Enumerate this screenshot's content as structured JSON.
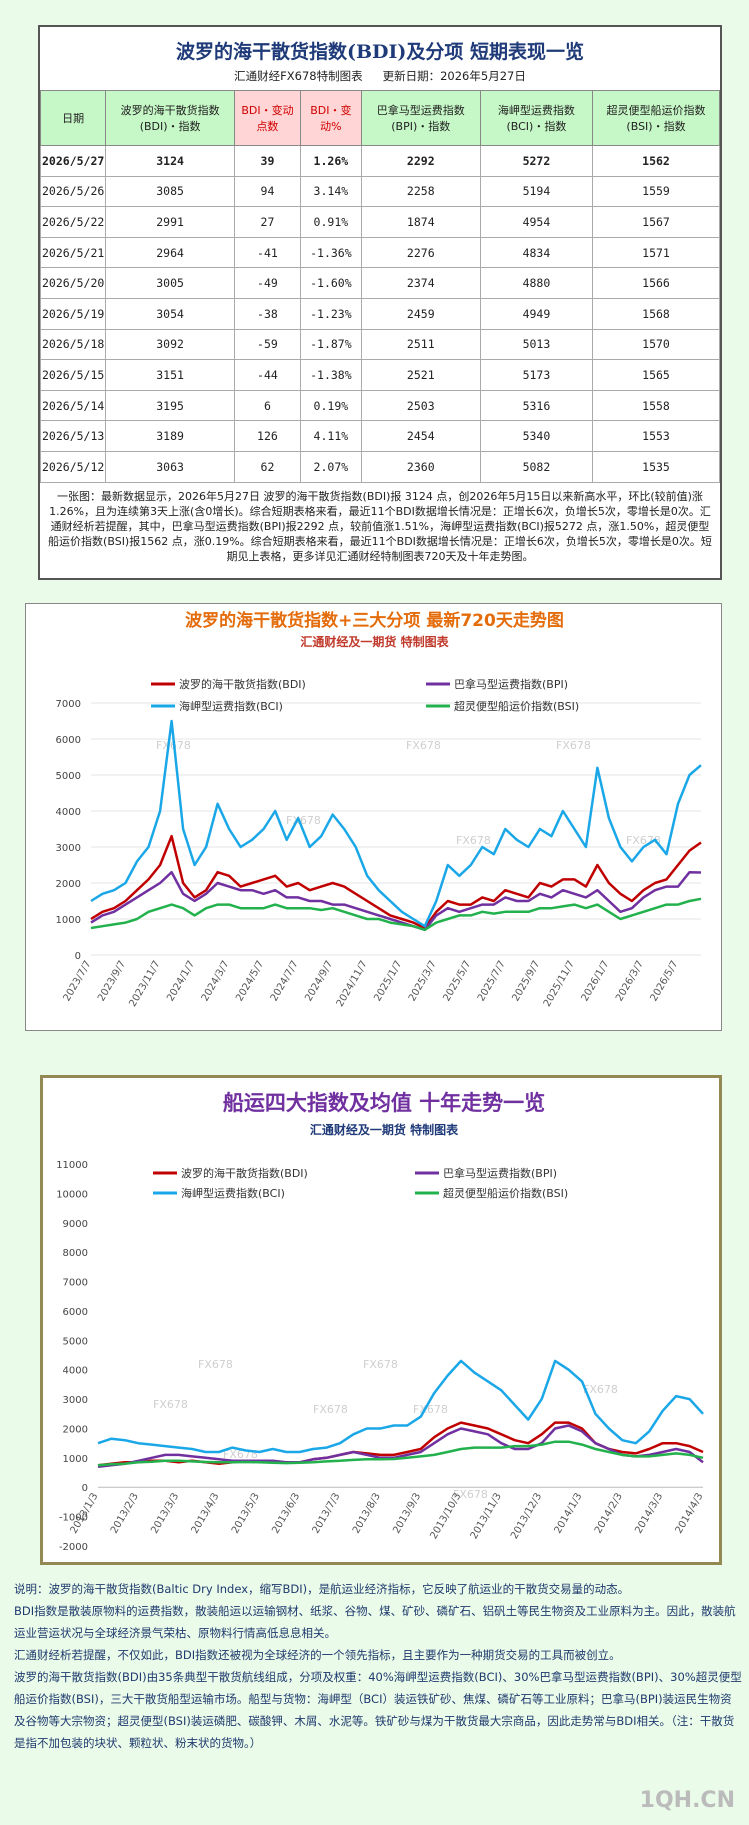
{
  "header": {
    "title": "波罗的海干散货指数(BDI)及分项  短期表现一览",
    "maker": "汇通财经FX678特制图表",
    "updated": "更新日期：2026年5月27日"
  },
  "table": {
    "columns": [
      "日期",
      "波罗的海干散货指数(BDI)・指数",
      "BDI・变动点数",
      "BDI・变动%",
      "巴拿马型运费指数(BPI)・指数",
      "海岬型运费指数(BCI)・指数",
      "超灵便型船运价指数(BSI)・指数"
    ],
    "rows": [
      [
        "2026/5/27",
        "3124",
        "39",
        "1.26%",
        "2292",
        "5272",
        "1562"
      ],
      [
        "2026/5/26",
        "3085",
        "94",
        "3.14%",
        "2258",
        "5194",
        "1559"
      ],
      [
        "2026/5/22",
        "2991",
        "27",
        "0.91%",
        "1874",
        "4954",
        "1567"
      ],
      [
        "2026/5/21",
        "2964",
        "-41",
        "-1.36%",
        "2276",
        "4834",
        "1571"
      ],
      [
        "2026/5/20",
        "3005",
        "-49",
        "-1.60%",
        "2374",
        "4880",
        "1566"
      ],
      [
        "2026/5/19",
        "3054",
        "-38",
        "-1.23%",
        "2459",
        "4949",
        "1568"
      ],
      [
        "2026/5/18",
        "3092",
        "-59",
        "-1.87%",
        "2511",
        "5013",
        "1570"
      ],
      [
        "2026/5/15",
        "3151",
        "-44",
        "-1.38%",
        "2521",
        "5173",
        "1565"
      ],
      [
        "2026/5/14",
        "3195",
        "6",
        "0.19%",
        "2503",
        "5316",
        "1558"
      ],
      [
        "2026/5/13",
        "3189",
        "126",
        "4.11%",
        "2454",
        "5340",
        "1553"
      ],
      [
        "2026/5/12",
        "3063",
        "62",
        "2.07%",
        "2360",
        "5082",
        "1535"
      ]
    ]
  },
  "summary": "一张图：最新数据显示，2026年5月27日 波罗的海干散货指数(BDI)报 3124 点，创2026年5月15日以来新高水平，环比(较前值)涨1.26%，且为连续第3天上涨(含0增长)。综合短期表格来看，最近11个BDI数据增长情况是：正增长6次，负增长5次，零增长是0次。汇通财经析若提醒，其中，巴拿马型运费指数(BPI)报2292 点，较前值涨1.51%，海岬型运费指数(BCI)报5272 点，涨1.50%，超灵便型船运价指数(BSI)报1562 点，涨0.19%。综合短期表格来看，最近11个BDI数据增长情况是：正增长6次，负增长5次，零增长是0次。短期见上表格，更多详见汇通财经特制图表720天及十年走势图。",
  "chart_data": [
    {
      "type": "line",
      "title": "波罗的海干散货指数+三大分项  最新720天走势图",
      "subtitle": "汇通财经及一期货 特制图表",
      "watermark": "FX678",
      "categories": [
        "2023/7/7",
        null,
        null,
        "2023/9/7",
        null,
        null,
        "2023/11/7",
        null,
        null,
        "2024/1/7",
        null,
        null,
        "2024/3/7",
        null,
        null,
        "2024/5/7",
        null,
        null,
        "2024/7/7",
        null,
        null,
        "2024/9/7",
        null,
        null,
        "2024/11/7",
        null,
        null,
        "2025/1/7",
        null,
        null,
        "2025/3/7",
        null,
        null,
        "2025/5/7",
        null,
        null,
        "2025/7/7",
        null,
        null,
        "2025/9/7",
        null,
        null,
        "2025/11/7",
        null,
        null,
        "2026/1/7",
        null,
        null,
        "2026/3/7",
        null,
        null,
        "2026/5/7",
        null,
        null
      ],
      "series": [
        {
          "name": "波罗的海干散货指数(BDI)",
          "color": "#c00000",
          "values": [
            1000,
            1200,
            1300,
            1500,
            1800,
            2100,
            2500,
            3300,
            2000,
            1600,
            1800,
            2300,
            2200,
            1900,
            2000,
            2100,
            2200,
            1900,
            2000,
            1800,
            1900,
            2000,
            1900,
            1700,
            1500,
            1300,
            1100,
            1000,
            900,
            750,
            1200,
            1500,
            1400,
            1400,
            1600,
            1500,
            1800,
            1700,
            1600,
            2000,
            1900,
            2100,
            2100,
            1900,
            2500,
            2000,
            1700,
            1500,
            1800,
            2000,
            2100,
            2500,
            2900,
            3124
          ]
        },
        {
          "name": "巴拿马型运费指数(BPI)",
          "color": "#7030a0",
          "values": [
            900,
            1100,
            1200,
            1400,
            1600,
            1800,
            2000,
            2300,
            1700,
            1500,
            1700,
            2000,
            1900,
            1800,
            1800,
            1700,
            1800,
            1600,
            1600,
            1500,
            1500,
            1400,
            1400,
            1300,
            1200,
            1100,
            1000,
            900,
            800,
            700,
            1100,
            1300,
            1200,
            1300,
            1400,
            1400,
            1600,
            1500,
            1500,
            1700,
            1600,
            1800,
            1700,
            1600,
            1800,
            1500,
            1200,
            1300,
            1600,
            1800,
            1900,
            1900,
            2300,
            2292
          ]
        },
        {
          "name": "海岬型运费指数(BCI)",
          "color": "#1aa7e8",
          "values": [
            1500,
            1700,
            1800,
            2000,
            2600,
            3000,
            4000,
            6500,
            3500,
            2500,
            3000,
            4200,
            3500,
            3000,
            3200,
            3500,
            4000,
            3200,
            3800,
            3000,
            3300,
            3900,
            3500,
            3000,
            2200,
            1800,
            1500,
            1200,
            1000,
            800,
            1500,
            2500,
            2200,
            2500,
            3000,
            2800,
            3500,
            3200,
            3000,
            3500,
            3300,
            4000,
            3500,
            3000,
            5200,
            3800,
            3000,
            2600,
            3000,
            3200,
            2800,
            4200,
            5000,
            5272
          ]
        },
        {
          "name": "超灵便型船运价指数(BSI)",
          "color": "#22b14c",
          "values": [
            750,
            800,
            850,
            900,
            1000,
            1200,
            1300,
            1400,
            1300,
            1100,
            1300,
            1400,
            1400,
            1300,
            1300,
            1300,
            1400,
            1300,
            1300,
            1300,
            1250,
            1300,
            1200,
            1100,
            1000,
            1000,
            900,
            850,
            800,
            700,
            900,
            1000,
            1100,
            1100,
            1200,
            1150,
            1200,
            1200,
            1200,
            1300,
            1300,
            1350,
            1400,
            1300,
            1400,
            1200,
            1000,
            1100,
            1200,
            1300,
            1400,
            1400,
            1500,
            1562
          ]
        }
      ],
      "ylim": [
        0,
        7000
      ],
      "yticks": [
        0,
        1000,
        2000,
        3000,
        4000,
        5000,
        6000,
        7000
      ],
      "grid": true
    },
    {
      "type": "line",
      "title": "船运四大指数及均值 十年走势一览",
      "subtitle": "汇通财经及一期货 特制图表",
      "watermark": "FX678",
      "categories": [
        "2013/1/3",
        null,
        null,
        "2013/2/3",
        null,
        null,
        "2013/3/3",
        null,
        null,
        "2013/4/3",
        null,
        null,
        "2013/5/3",
        null,
        null,
        "2013/6/3",
        null,
        null,
        "2013/7/3",
        null,
        null,
        "2013/8/3",
        null,
        null,
        "2013/9/3",
        null,
        null,
        "2013/10/3",
        null,
        null,
        "2013/11/3",
        null,
        null,
        "2013/12/3",
        null,
        null,
        "2014/1/3",
        null,
        null,
        "2014/2/3",
        null,
        null,
        "2014/3/3",
        null,
        null,
        "2014/4/3"
      ],
      "series": [
        {
          "name": "波罗的海干散货指数(BDI)",
          "color": "#c00000",
          "values": [
            750,
            800,
            850,
            850,
            900,
            900,
            850,
            900,
            850,
            800,
            850,
            900,
            900,
            850,
            850,
            850,
            950,
            1000,
            1100,
            1200,
            1150,
            1100,
            1100,
            1200,
            1300,
            1700,
            2000,
            2200,
            2100,
            2000,
            1800,
            1600,
            1500,
            1800,
            2200,
            2200,
            2000,
            1500,
            1300,
            1200,
            1150,
            1300,
            1500,
            1500,
            1400,
            1200
          ]
        },
        {
          "name": "巴拿马型运费指数(BPI)",
          "color": "#7030a0",
          "values": [
            700,
            750,
            800,
            900,
            1000,
            1100,
            1100,
            1050,
            1000,
            950,
            900,
            900,
            900,
            900,
            850,
            850,
            950,
            1000,
            1100,
            1200,
            1100,
            1000,
            1000,
            1100,
            1200,
            1500,
            1800,
            2000,
            1900,
            1800,
            1500,
            1300,
            1300,
            1500,
            2000,
            2100,
            1900,
            1500,
            1300,
            1100,
            1050,
            1100,
            1200,
            1300,
            1200,
            850
          ]
        },
        {
          "name": "海岬型运费指数(BCI)",
          "color": "#1aa7e8",
          "values": [
            1500,
            1650,
            1600,
            1500,
            1450,
            1400,
            1350,
            1300,
            1200,
            1200,
            1350,
            1250,
            1200,
            1300,
            1200,
            1200,
            1300,
            1350,
            1500,
            1800,
            2000,
            2000,
            2100,
            2100,
            2400,
            3200,
            3800,
            4300,
            3900,
            3600,
            3300,
            2800,
            2300,
            3000,
            4300,
            4000,
            3600,
            2500,
            2000,
            1600,
            1500,
            1900,
            2600,
            3100,
            3000,
            2500
          ]
        },
        {
          "name": "超灵便型船运价指数(BSI)",
          "color": "#22b14c",
          "values": [
            750,
            780,
            800,
            850,
            870,
            900,
            900,
            880,
            860,
            850,
            850,
            860,
            850,
            830,
            820,
            830,
            850,
            880,
            900,
            930,
            950,
            950,
            960,
            1000,
            1050,
            1100,
            1200,
            1300,
            1350,
            1350,
            1350,
            1400,
            1400,
            1450,
            1550,
            1550,
            1450,
            1300,
            1200,
            1100,
            1050,
            1050,
            1100,
            1150,
            1100,
            1000
          ]
        }
      ],
      "ylim": [
        -2000,
        11000
      ],
      "yticks": [
        -2000,
        -1000,
        0,
        1000,
        2000,
        3000,
        4000,
        5000,
        6000,
        7000,
        8000,
        9000,
        10000,
        11000
      ],
      "grid": false
    }
  ],
  "notes": [
    "说明：波罗的海干散货指数(Baltic Dry Index，缩写BDI)，是航运业经济指标，它反映了航运业的干散货交易量的动态。",
    "BDI指数是散装原物料的运费指数，散装船运以运输钢材、纸浆、谷物、煤、矿砂、磷矿石、铝矾土等民生物资及工业原料为主。因此，散装航运业营运状况与全球经济景气荣枯、原物料行情高低息息相关。",
    "汇通财经析若提醒，不仅如此，BDI指数还被视为全球经济的一个领先指标，且主要作为一种期货交易的工具而被创立。",
    "波罗的海干散货指数(BDI)由35条典型干散货航线组成，分项及权重：40%海岬型运费指数(BCI)、30%巴拿马型运费指数(BPI)、30%超灵便型船运价指数(BSI)，三大干散货船型运输市场。船型与货物：海岬型（BCI）装运铁矿砂、焦煤、磷矿石等工业原料；巴拿马(BPI)装运民生物资及谷物等大宗物资；超灵便型(BSI)装运磷肥、碳酸钾、木屑、水泥等。铁矿砂与煤为干散货最大宗商品，因此走势常与BDI相关。（注：干散货是指不加包装的块状、颗粒状、粉末状的货物。）"
  ],
  "site": "1QH.CN"
}
